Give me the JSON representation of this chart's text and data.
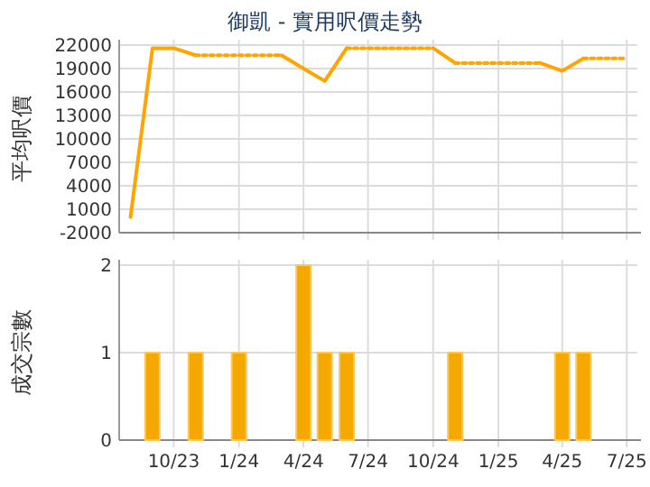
{
  "chart_data": [
    {
      "type": "line",
      "title": "御凱 - 實用呎價走勢",
      "ylabel": "平均呎價",
      "xlim": [
        "2023-07-16",
        "2025-07-16"
      ],
      "ylim": [
        -2000,
        22000
      ],
      "yticks": [
        -2000,
        1000,
        4000,
        7000,
        10000,
        13000,
        16000,
        19000,
        22000
      ],
      "xticks": [
        {
          "value": "2023-10",
          "label": null
        },
        {
          "value": "2024-01",
          "label": null
        },
        {
          "value": "2024-04",
          "label": null
        },
        {
          "value": "2024-07",
          "label": null
        },
        {
          "value": "2024-10",
          "label": null
        },
        {
          "value": "2025-01",
          "label": null
        },
        {
          "value": "2025-04",
          "label": null
        },
        {
          "value": "2025-07",
          "label": null
        }
      ],
      "tick_labels": "y",
      "grid": true,
      "marker": "none",
      "series": [
        {
          "line_style": "solid",
          "color": "#ffa500",
          "x": [
            "2023-08",
            "2023-09",
            "2023-10",
            "2023-11"
          ],
          "values": [
            0,
            21600,
            21600,
            20700
          ]
        },
        {
          "line_style": "dotted",
          "color": "#ffa500",
          "x": [
            "2023-11",
            "2023-12",
            "2024-01",
            "2024-02",
            "2024-03"
          ],
          "values": [
            20700,
            20700,
            20700,
            20700,
            20700
          ]
        },
        {
          "line_style": "solid",
          "color": "#ffa500",
          "x": [
            "2024-03",
            "2024-04",
            "2024-05",
            "2024-06"
          ],
          "values": [
            20700,
            19000,
            17400,
            21600
          ]
        },
        {
          "line_style": "dotted",
          "color": "#ffa500",
          "x": [
            "2024-06",
            "2024-07",
            "2024-08",
            "2024-09",
            "2024-10"
          ],
          "values": [
            21600,
            21600,
            21600,
            21600,
            21600
          ]
        },
        {
          "line_style": "solid",
          "color": "#ffa500",
          "x": [
            "2024-10",
            "2024-11"
          ],
          "values": [
            21600,
            19700
          ]
        },
        {
          "line_style": "dotted",
          "color": "#ffa500",
          "x": [
            "2024-11",
            "2024-12",
            "2025-01",
            "2025-02",
            "2025-03"
          ],
          "values": [
            19700,
            19700,
            19700,
            19700,
            19700
          ]
        },
        {
          "line_style": "solid",
          "color": "#ffa500",
          "x": [
            "2025-03",
            "2025-04",
            "2025-05"
          ],
          "values": [
            19700,
            18700,
            20300
          ]
        },
        {
          "line_style": "dotted",
          "color": "#ffa500",
          "x": [
            "2025-05",
            "2025-06",
            "2025-07"
          ],
          "values": [
            20300,
            20300,
            20300
          ]
        }
      ]
    },
    {
      "type": "bar",
      "ylabel": "成交宗數",
      "xlim": [
        "2023-07-16",
        "2025-07-16"
      ],
      "ylim": [
        0,
        2
      ],
      "yticks": [
        0,
        1,
        2
      ],
      "xticks": [
        {
          "value": "2023-10",
          "label": "10/23"
        },
        {
          "value": "2024-01",
          "label": "1/24"
        },
        {
          "value": "2024-04",
          "label": "4/24"
        },
        {
          "value": "2024-07",
          "label": "7/24"
        },
        {
          "value": "2024-10",
          "label": "10/24"
        },
        {
          "value": "2025-01",
          "label": "1/25"
        },
        {
          "value": "2025-04",
          "label": "4/25"
        },
        {
          "value": "2025-07",
          "label": "7/25"
        }
      ],
      "grid": true,
      "series": [
        {
          "color": "#f5a800",
          "x": [
            "2023-09",
            "2023-11",
            "2024-01",
            "2024-04",
            "2024-05",
            "2024-06",
            "2024-11",
            "2025-04",
            "2025-05"
          ],
          "values": [
            1,
            1,
            1,
            2,
            1,
            1,
            1,
            1,
            1
          ]
        }
      ]
    }
  ]
}
